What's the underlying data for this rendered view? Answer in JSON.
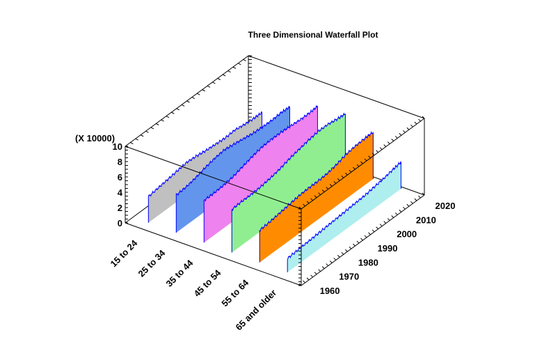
{
  "chart_data": {
    "type": "waterfall-3d",
    "title": "Three Dimensional Waterfall Plot",
    "zlabel_multiplier": "(X 10000)",
    "zlim": [
      0,
      10
    ],
    "z_ticks": [
      "0",
      "2",
      "4",
      "6",
      "8",
      "10"
    ],
    "ylim": [
      1956,
      2020
    ],
    "year_ticks": [
      "1960",
      "1970",
      "1980",
      "1990",
      "2000",
      "2010",
      "2020"
    ],
    "categories": [
      "15 to 24",
      "25 to 34",
      "35 to 44",
      "45 to 54",
      "55 to 64",
      "65 and older"
    ],
    "x": [
      1960,
      1965,
      1970,
      1975,
      1980,
      1985,
      1990,
      1995,
      2000,
      2005,
      2010,
      2015,
      2019
    ],
    "series": [
      {
        "name": "15 to 24",
        "color": "#c0c0c0",
        "values": [
          3.4,
          3.6,
          3.8,
          4.0,
          4.2,
          4.1,
          3.9,
          3.8,
          3.7,
          3.8,
          3.6,
          3.5,
          3.5
        ]
      },
      {
        "name": "25 to 34",
        "color": "#6495ed",
        "values": [
          4.9,
          5.0,
          5.3,
          5.7,
          6.0,
          6.2,
          6.0,
          5.8,
          5.6,
          5.5,
          5.5,
          5.6,
          5.5
        ]
      },
      {
        "name": "35 to 44",
        "color": "#ee82ee",
        "values": [
          5.5,
          5.5,
          5.6,
          5.8,
          6.2,
          6.6,
          6.9,
          7.0,
          7.0,
          6.9,
          6.8,
          6.8,
          6.9
        ]
      },
      {
        "name": "45 to 54",
        "color": "#90ee90",
        "values": [
          5.6,
          5.7,
          5.7,
          5.8,
          6.0,
          6.3,
          6.7,
          7.0,
          7.3,
          7.5,
          7.5,
          7.3,
          7.2
        ]
      },
      {
        "name": "55 to 64",
        "color": "#ff8c00",
        "values": [
          4.2,
          4.3,
          4.5,
          4.7,
          4.9,
          5.0,
          5.0,
          5.1,
          5.4,
          5.8,
          6.0,
          6.1,
          6.1
        ]
      },
      {
        "name": "65 and older",
        "color": "#afeeee",
        "values": [
          1.8,
          1.9,
          2.0,
          2.1,
          2.2,
          2.3,
          2.4,
          2.5,
          2.6,
          2.8,
          3.0,
          3.3,
          3.5
        ]
      }
    ],
    "outline_color": "#0000ff",
    "grid": false,
    "legend": "none"
  }
}
